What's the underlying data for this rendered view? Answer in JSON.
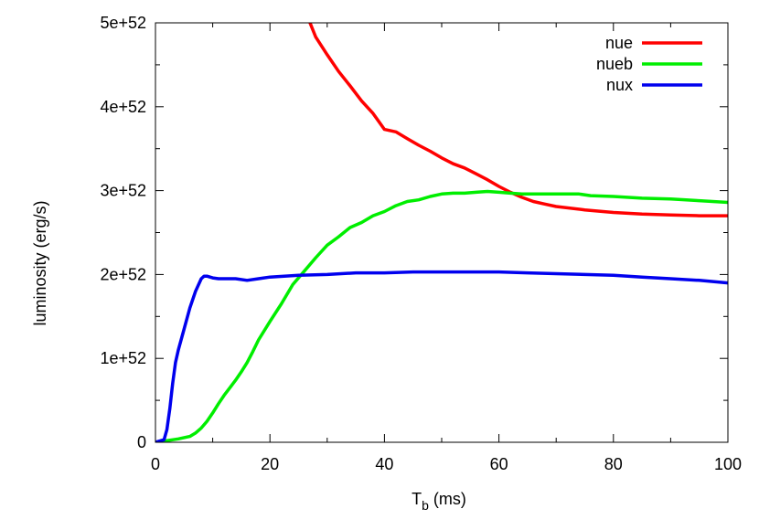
{
  "chart_data": {
    "type": "line",
    "title": "",
    "xlabel_main": "T",
    "xlabel_sub": "b",
    "xlabel_unit": " (ms)",
    "ylabel": "luminosity (erg/s)",
    "xlim": [
      0,
      100
    ],
    "ylim": [
      0,
      5e+52
    ],
    "grid": false,
    "legend_position": "top-right",
    "x_ticks": [
      0,
      20,
      40,
      60,
      80,
      100
    ],
    "x_tick_labels": [
      "0",
      "20",
      "40",
      "60",
      "80",
      "100"
    ],
    "y_ticks": [
      0,
      1e+52,
      2e+52,
      3e+52,
      4e+52,
      5e+52
    ],
    "y_tick_labels": [
      "0",
      "1e+52",
      "2e+52",
      "3e+52",
      "4e+52",
      "5e+52"
    ],
    "series": [
      {
        "name": "nue",
        "color": "#ff0000",
        "x": [
          27,
          28,
          30,
          32,
          34,
          36,
          38,
          40,
          42,
          44,
          46,
          48,
          50,
          52,
          54,
          56,
          58,
          60,
          62,
          64,
          66,
          68,
          70,
          75,
          80,
          85,
          90,
          95,
          100
        ],
        "y": [
          5e+52,
          4.83e+52,
          4.62e+52,
          4.42e+52,
          4.25e+52,
          4.07e+52,
          3.92e+52,
          3.73e+52,
          3.7e+52,
          3.62e+52,
          3.54e+52,
          3.47e+52,
          3.39e+52,
          3.32e+52,
          3.27e+52,
          3.2e+52,
          3.13e+52,
          3.05e+52,
          2.98e+52,
          2.92e+52,
          2.87e+52,
          2.84e+52,
          2.81e+52,
          2.77e+52,
          2.74e+52,
          2.72e+52,
          2.71e+52,
          2.7e+52,
          2.7e+52
        ]
      },
      {
        "name": "nueb",
        "color": "#00ee00",
        "x": [
          0,
          2,
          4,
          6,
          7,
          8,
          9,
          10,
          11,
          12,
          13,
          14,
          15,
          16,
          17,
          18,
          20,
          22,
          24,
          26,
          28,
          30,
          32,
          34,
          36,
          38,
          40,
          42,
          44,
          46,
          48,
          50,
          52,
          54,
          56,
          58,
          60,
          62,
          64,
          66,
          68,
          70,
          72,
          74,
          76,
          80,
          85,
          90,
          95,
          100
        ],
        "y": [
          0,
          2e+50,
          4e+50,
          7e+50,
          1.1e+51,
          1.7e+51,
          2.5e+51,
          3.5e+51,
          4.6e+51,
          5.6e+51,
          6.5e+51,
          7.4e+51,
          8.4e+51,
          9.5e+51,
          1.08e+52,
          1.22e+52,
          1.44e+52,
          1.65e+52,
          1.88e+52,
          2.04e+52,
          2.2e+52,
          2.35e+52,
          2.45e+52,
          2.56e+52,
          2.62e+52,
          2.7e+52,
          2.75e+52,
          2.82e+52,
          2.87e+52,
          2.89e+52,
          2.93e+52,
          2.96e+52,
          2.97e+52,
          2.97e+52,
          2.98e+52,
          2.99e+52,
          2.98e+52,
          2.97e+52,
          2.96e+52,
          2.96e+52,
          2.96e+52,
          2.96e+52,
          2.96e+52,
          2.96e+52,
          2.94e+52,
          2.93e+52,
          2.91e+52,
          2.9e+52,
          2.88e+52,
          2.86e+52
        ]
      },
      {
        "name": "nux",
        "color": "#0000ee",
        "x": [
          0,
          1.5,
          2,
          2.5,
          3,
          3.5,
          4,
          5,
          6,
          7,
          8,
          8.5,
          9,
          10,
          11,
          12,
          14,
          16,
          18,
          20,
          25,
          30,
          35,
          40,
          45,
          50,
          55,
          60,
          65,
          70,
          75,
          80,
          85,
          90,
          95,
          100
        ],
        "y": [
          0,
          3e+50,
          1.5e+51,
          4e+51,
          7e+51,
          9.5e+51,
          1.1e+52,
          1.35e+52,
          1.6e+52,
          1.8e+52,
          1.95e+52,
          1.98e+52,
          1.98e+52,
          1.96e+52,
          1.95e+52,
          1.95e+52,
          1.95e+52,
          1.93e+52,
          1.95e+52,
          1.97e+52,
          1.99e+52,
          2e+52,
          2.02e+52,
          2.02e+52,
          2.03e+52,
          2.03e+52,
          2.03e+52,
          2.03e+52,
          2.02e+52,
          2.01e+52,
          2e+52,
          1.99e+52,
          1.97e+52,
          1.95e+52,
          1.93e+52,
          1.9e+52
        ]
      }
    ]
  }
}
